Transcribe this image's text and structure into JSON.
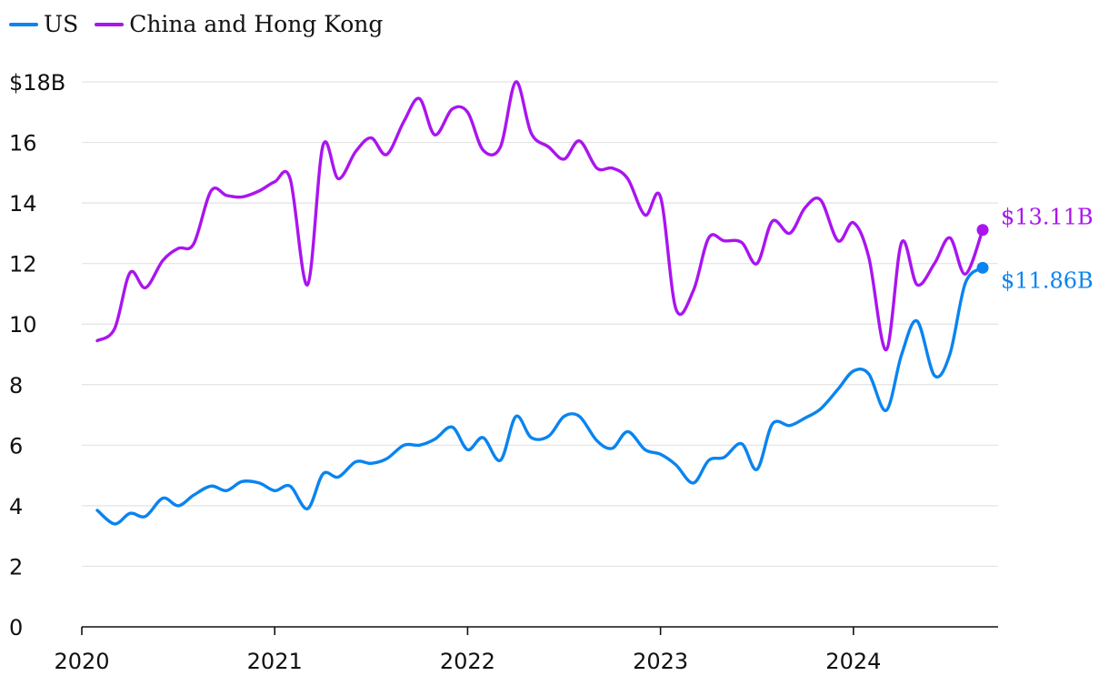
{
  "chart_data": {
    "type": "line",
    "ylim": [
      0,
      18
    ],
    "y_ticks": [
      0,
      2,
      4,
      6,
      8,
      10,
      12,
      14,
      16,
      18
    ],
    "y_tick_labels": [
      "0",
      "2",
      "4",
      "6",
      "8",
      "10",
      "12",
      "14",
      "16",
      "$18B"
    ],
    "xlim": [
      2020.0,
      2024.75
    ],
    "x_ticks": [
      2020,
      2021,
      2022,
      2023,
      2024
    ],
    "x_tick_labels": [
      "2020",
      "2021",
      "2022",
      "2023",
      "2024"
    ],
    "grid": true,
    "legend_position": "top-left",
    "series": [
      {
        "name": "US",
        "color": "#0a84f0",
        "end_label": "$11.86B",
        "points": [
          [
            2020.08,
            3.85
          ],
          [
            2020.17,
            3.4
          ],
          [
            2020.25,
            3.75
          ],
          [
            2020.33,
            3.65
          ],
          [
            2020.42,
            4.25
          ],
          [
            2020.5,
            4.0
          ],
          [
            2020.58,
            4.35
          ],
          [
            2020.67,
            4.65
          ],
          [
            2020.75,
            4.5
          ],
          [
            2020.83,
            4.8
          ],
          [
            2020.92,
            4.75
          ],
          [
            2021.0,
            4.5
          ],
          [
            2021.08,
            4.65
          ],
          [
            2021.17,
            3.9
          ],
          [
            2021.25,
            5.05
          ],
          [
            2021.33,
            4.95
          ],
          [
            2021.42,
            5.45
          ],
          [
            2021.5,
            5.4
          ],
          [
            2021.58,
            5.55
          ],
          [
            2021.67,
            6.0
          ],
          [
            2021.75,
            6.0
          ],
          [
            2021.83,
            6.2
          ],
          [
            2021.92,
            6.6
          ],
          [
            2022.0,
            5.85
          ],
          [
            2022.08,
            6.25
          ],
          [
            2022.17,
            5.5
          ],
          [
            2022.25,
            6.95
          ],
          [
            2022.33,
            6.25
          ],
          [
            2022.42,
            6.3
          ],
          [
            2022.5,
            6.95
          ],
          [
            2022.58,
            6.95
          ],
          [
            2022.67,
            6.15
          ],
          [
            2022.75,
            5.9
          ],
          [
            2022.83,
            6.45
          ],
          [
            2022.92,
            5.85
          ],
          [
            2023.0,
            5.7
          ],
          [
            2023.08,
            5.35
          ],
          [
            2023.17,
            4.75
          ],
          [
            2023.25,
            5.5
          ],
          [
            2023.33,
            5.6
          ],
          [
            2023.42,
            6.05
          ],
          [
            2023.5,
            5.2
          ],
          [
            2023.58,
            6.7
          ],
          [
            2023.67,
            6.65
          ],
          [
            2023.75,
            6.9
          ],
          [
            2023.83,
            7.2
          ],
          [
            2023.92,
            7.85
          ],
          [
            2024.0,
            8.45
          ],
          [
            2024.08,
            8.35
          ],
          [
            2024.17,
            7.15
          ],
          [
            2024.25,
            9.0
          ],
          [
            2024.33,
            10.1
          ],
          [
            2024.42,
            8.3
          ],
          [
            2024.5,
            9.0
          ],
          [
            2024.58,
            11.35
          ],
          [
            2024.67,
            11.86
          ]
        ]
      },
      {
        "name": "China and Hong Kong",
        "color": "#aa14f0",
        "end_label": "$13.11B",
        "points": [
          [
            2020.08,
            9.45
          ],
          [
            2020.17,
            9.85
          ],
          [
            2020.25,
            11.7
          ],
          [
            2020.33,
            11.2
          ],
          [
            2020.42,
            12.1
          ],
          [
            2020.5,
            12.5
          ],
          [
            2020.58,
            12.65
          ],
          [
            2020.67,
            14.4
          ],
          [
            2020.75,
            14.25
          ],
          [
            2020.83,
            14.2
          ],
          [
            2020.92,
            14.4
          ],
          [
            2021.0,
            14.7
          ],
          [
            2021.08,
            14.8
          ],
          [
            2021.17,
            11.3
          ],
          [
            2021.25,
            15.9
          ],
          [
            2021.33,
            14.8
          ],
          [
            2021.42,
            15.7
          ],
          [
            2021.5,
            16.15
          ],
          [
            2021.58,
            15.6
          ],
          [
            2021.67,
            16.7
          ],
          [
            2021.75,
            17.45
          ],
          [
            2021.83,
            16.25
          ],
          [
            2021.92,
            17.1
          ],
          [
            2022.0,
            17.0
          ],
          [
            2022.08,
            15.75
          ],
          [
            2022.17,
            15.85
          ],
          [
            2022.25,
            18.0
          ],
          [
            2022.33,
            16.3
          ],
          [
            2022.42,
            15.85
          ],
          [
            2022.5,
            15.45
          ],
          [
            2022.58,
            16.05
          ],
          [
            2022.67,
            15.15
          ],
          [
            2022.75,
            15.15
          ],
          [
            2022.83,
            14.8
          ],
          [
            2022.92,
            13.6
          ],
          [
            2023.0,
            14.2
          ],
          [
            2023.08,
            10.5
          ],
          [
            2023.17,
            11.1
          ],
          [
            2023.25,
            12.85
          ],
          [
            2023.33,
            12.75
          ],
          [
            2023.42,
            12.7
          ],
          [
            2023.5,
            12.0
          ],
          [
            2023.58,
            13.4
          ],
          [
            2023.67,
            13.0
          ],
          [
            2023.75,
            13.85
          ],
          [
            2023.83,
            14.1
          ],
          [
            2023.92,
            12.75
          ],
          [
            2024.0,
            13.35
          ],
          [
            2024.08,
            12.2
          ],
          [
            2024.17,
            9.15
          ],
          [
            2024.25,
            12.7
          ],
          [
            2024.33,
            11.3
          ],
          [
            2024.42,
            12.0
          ],
          [
            2024.5,
            12.85
          ],
          [
            2024.58,
            11.65
          ],
          [
            2024.67,
            13.11
          ]
        ]
      }
    ]
  }
}
